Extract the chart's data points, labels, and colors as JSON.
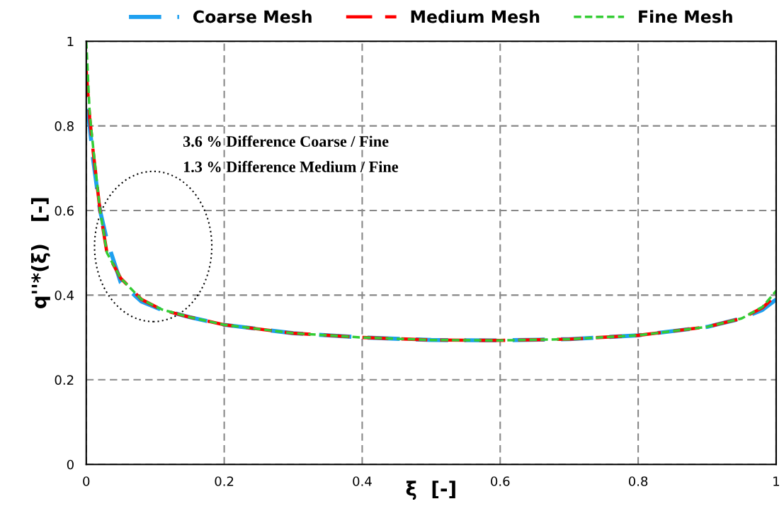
{
  "chart_data": {
    "type": "line",
    "xlabel": "ξ  [-]",
    "ylabel": "q''*(ξ)   [-]",
    "annotations": [
      "3.6 % Difference Coarse / Fine",
      "1.3 % Difference Medium / Fine"
    ],
    "xlim": [
      0,
      1
    ],
    "ylim": [
      0,
      1
    ],
    "xticks": [
      0,
      0.2,
      0.4,
      0.6,
      0.8,
      1
    ],
    "yticks": [
      0,
      0.2,
      0.4,
      0.6,
      0.8,
      1
    ],
    "grid": true,
    "legend": "top",
    "marker": "none",
    "series": [
      {
        "name": "Coarse Mesh",
        "color": "#1ea0f0",
        "line_style": "dashed",
        "x": [
          0,
          0.005,
          0.01,
          0.02,
          0.03,
          0.05,
          0.08,
          0.11,
          0.15,
          0.2,
          0.3,
          0.4,
          0.5,
          0.6,
          0.7,
          0.8,
          0.9,
          0.95,
          0.98,
          1.0
        ],
        "values": [
          0.84,
          0.8,
          0.72,
          0.6,
          0.53,
          0.43,
          0.385,
          0.365,
          0.348,
          0.33,
          0.31,
          0.3,
          0.294,
          0.293,
          0.296,
          0.305,
          0.325,
          0.345,
          0.365,
          0.39
        ]
      },
      {
        "name": "Medium Mesh",
        "color": "#ff0000",
        "line_style": "dashed",
        "x": [
          0,
          0.005,
          0.01,
          0.02,
          0.03,
          0.05,
          0.08,
          0.11,
          0.15,
          0.2,
          0.3,
          0.4,
          0.5,
          0.6,
          0.7,
          0.8,
          0.9,
          0.95,
          0.98,
          1.0
        ],
        "values": [
          0.93,
          0.82,
          0.74,
          0.6,
          0.5,
          0.44,
          0.39,
          0.365,
          0.348,
          0.33,
          0.31,
          0.3,
          0.294,
          0.293,
          0.296,
          0.305,
          0.325,
          0.345,
          0.37,
          0.4
        ]
      },
      {
        "name": "Fine Mesh",
        "color": "#33cc33",
        "line_style": "dotted",
        "x": [
          0,
          0.005,
          0.01,
          0.02,
          0.03,
          0.05,
          0.08,
          0.11,
          0.15,
          0.2,
          0.3,
          0.4,
          0.5,
          0.6,
          0.7,
          0.8,
          0.9,
          0.95,
          0.98,
          1.0
        ],
        "values": [
          1.0,
          0.83,
          0.75,
          0.6,
          0.5,
          0.44,
          0.39,
          0.366,
          0.348,
          0.33,
          0.31,
          0.3,
          0.294,
          0.293,
          0.296,
          0.305,
          0.325,
          0.345,
          0.372,
          0.41
        ]
      }
    ]
  }
}
